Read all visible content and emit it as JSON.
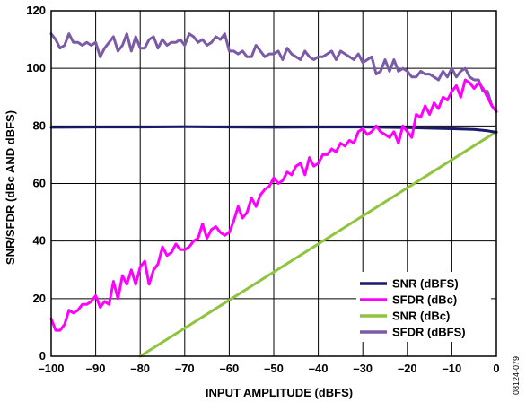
{
  "chart_data": {
    "type": "line",
    "title": "",
    "xlabel": "INPUT AMPLITUDE (dBFS)",
    "ylabel": "SNR/SFDR (dBc AND dBFS)",
    "xlim": [
      -100,
      0
    ],
    "ylim": [
      0,
      120
    ],
    "x_ticks": [
      -100,
      -90,
      -80,
      -70,
      -60,
      -50,
      -40,
      -30,
      -20,
      -10,
      0
    ],
    "x_tick_labels": [
      "–100",
      "–90",
      "–80",
      "–70",
      "–60",
      "–50",
      "–40",
      "–30",
      "–20",
      "–10",
      "0"
    ],
    "y_ticks": [
      0,
      20,
      40,
      60,
      80,
      100,
      120
    ],
    "y_tick_labels": [
      "0",
      "20",
      "40",
      "60",
      "80",
      "100",
      "120"
    ],
    "grid": true,
    "legend_position": "bottom-right",
    "figure_id": "08124-079",
    "series": [
      {
        "name": "SNR (dBFS)",
        "color": "#1a1a6e",
        "x": [
          -100,
          -90,
          -80,
          -70,
          -60,
          -50,
          -40,
          -30,
          -20,
          -15,
          -10,
          -5,
          -2,
          0
        ],
        "y": [
          79.5,
          79.6,
          79.6,
          79.7,
          79.6,
          79.5,
          79.6,
          79.6,
          79.4,
          79.2,
          79.0,
          78.8,
          78.3,
          77.8
        ]
      },
      {
        "name": "SFDR (dBc)",
        "color": "#ff00ff",
        "x": [
          -100,
          -99,
          -98,
          -97,
          -96,
          -95,
          -94,
          -93,
          -92,
          -91,
          -90,
          -89,
          -88,
          -87,
          -86,
          -85,
          -84,
          -83,
          -82,
          -81,
          -80,
          -79,
          -78,
          -77,
          -76,
          -75,
          -74,
          -73,
          -72,
          -71,
          -70,
          -69,
          -68,
          -67,
          -66,
          -65,
          -64,
          -63,
          -62,
          -61,
          -60,
          -59,
          -58,
          -57,
          -56,
          -55,
          -54,
          -53,
          -52,
          -51,
          -50,
          -49,
          -48,
          -47,
          -46,
          -45,
          -44,
          -43,
          -42,
          -41,
          -40,
          -39,
          -38,
          -37,
          -36,
          -35,
          -34,
          -33,
          -32,
          -31,
          -30,
          -29,
          -28,
          -27,
          -26,
          -25,
          -24,
          -23,
          -22,
          -21,
          -20,
          -19,
          -18,
          -17,
          -16,
          -15,
          -14,
          -13,
          -12,
          -11,
          -10,
          -9,
          -8,
          -7,
          -6,
          -5,
          -4,
          -3,
          -2,
          -1,
          0
        ],
        "y": [
          13,
          9,
          9,
          11,
          16,
          15,
          16,
          18,
          18,
          19,
          21,
          17,
          19,
          18,
          26,
          20,
          28,
          25,
          30,
          25,
          31,
          33,
          25,
          30,
          32,
          38,
          35,
          36,
          39,
          37,
          37,
          38,
          40,
          41,
          46,
          41,
          44,
          45,
          43,
          42,
          43,
          47,
          52,
          48,
          50,
          55,
          52,
          56,
          58,
          59,
          62,
          60,
          61,
          64,
          63,
          66,
          67,
          63,
          69,
          66,
          67,
          70,
          70,
          72,
          71,
          74,
          73,
          75,
          74,
          78,
          79,
          77,
          78,
          80,
          78,
          77,
          76,
          78,
          74,
          80,
          78,
          76,
          84,
          83,
          87,
          84,
          88,
          86,
          90,
          89,
          92,
          94,
          90,
          96,
          95,
          93,
          95,
          93,
          90,
          87,
          85
        ]
      },
      {
        "name": "SNR (dBc)",
        "color": "#8fc43f",
        "x": [
          -80,
          0
        ],
        "y": [
          0,
          78
        ]
      },
      {
        "name": "SFDR (dBFS)",
        "color": "#7b5aa6",
        "x": [
          -100,
          -99,
          -98,
          -97,
          -96,
          -95,
          -94,
          -93,
          -92,
          -91,
          -90,
          -89,
          -88,
          -87,
          -86,
          -85,
          -84,
          -83,
          -82,
          -81,
          -80,
          -79,
          -78,
          -77,
          -76,
          -75,
          -74,
          -73,
          -72,
          -71,
          -70,
          -69,
          -68,
          -67,
          -66,
          -65,
          -64,
          -63,
          -62,
          -61,
          -60,
          -59,
          -58,
          -57,
          -56,
          -55,
          -54,
          -53,
          -52,
          -51,
          -50,
          -49,
          -48,
          -47,
          -46,
          -45,
          -44,
          -43,
          -42,
          -41,
          -40,
          -39,
          -38,
          -37,
          -36,
          -35,
          -34,
          -33,
          -32,
          -31,
          -30,
          -29,
          -28,
          -27,
          -26,
          -25,
          -24,
          -23,
          -22,
          -21,
          -20,
          -19,
          -18,
          -17,
          -16,
          -15,
          -14,
          -13,
          -12,
          -11,
          -10,
          -9,
          -8,
          -7,
          -6,
          -5,
          -4,
          -3,
          -2,
          -1,
          0
        ],
        "y": [
          112,
          110,
          107,
          108,
          112,
          109,
          109,
          108,
          109,
          108,
          109,
          104,
          107,
          109,
          111,
          106,
          108,
          112,
          106,
          111,
          107,
          107,
          110,
          111,
          107,
          110,
          108,
          109,
          109,
          110,
          108,
          112,
          111,
          109,
          110,
          108,
          109,
          111,
          110,
          112,
          106,
          106,
          105,
          106,
          104,
          104,
          108,
          106,
          104,
          105,
          105,
          106,
          103,
          107,
          105,
          104,
          103,
          106,
          104,
          103,
          104,
          104,
          105,
          106,
          103,
          106,
          105,
          104,
          103,
          105,
          102,
          103,
          104,
          98,
          99,
          103,
          99,
          103,
          99,
          100,
          99,
          97,
          97,
          99,
          98,
          98,
          97,
          96,
          99,
          97,
          100,
          97,
          99,
          100,
          97,
          96,
          96,
          92,
          92,
          87,
          85
        ]
      }
    ]
  }
}
